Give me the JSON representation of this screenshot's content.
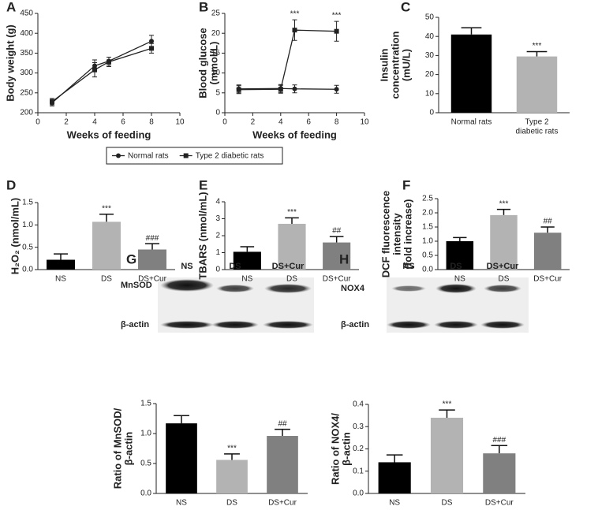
{
  "chart_data": [
    {
      "type": "line",
      "panel": "A",
      "ylabel": [
        "Body weight (g)"
      ],
      "xlabel": "Weeks of feeding",
      "xlim": [
        0,
        10
      ],
      "xticks": [
        0,
        2,
        4,
        6,
        8,
        10
      ],
      "ylim": [
        200,
        450
      ],
      "yticks": [
        200,
        250,
        300,
        350,
        400,
        450
      ],
      "x": [
        1,
        4,
        5,
        8
      ],
      "legend": true,
      "series": [
        {
          "name": "Normal rats",
          "marker": "circle",
          "color": "#222222",
          "values": [
            225,
            318,
            330,
            380
          ],
          "errors": [
            8,
            15,
            10,
            15
          ]
        },
        {
          "name": "Type 2 diabetic rats",
          "marker": "square",
          "color": "#222222",
          "values": [
            228,
            308,
            328,
            362
          ],
          "errors": [
            8,
            18,
            12,
            12
          ]
        }
      ]
    },
    {
      "type": "line",
      "panel": "B",
      "ylabel": [
        "Blood glucose",
        "(mmol/L)"
      ],
      "xlabel": "Weeks of feeding",
      "xlim": [
        0,
        10
      ],
      "xticks": [
        0,
        2,
        4,
        6,
        8,
        10
      ],
      "ylim": [
        0,
        25
      ],
      "yticks": [
        0,
        5,
        10,
        15,
        20,
        25
      ],
      "x": [
        1,
        4,
        5,
        8
      ],
      "series": [
        {
          "name": "Normal rats",
          "marker": "circle",
          "color": "#222222",
          "values": [
            6,
            6.1,
            6,
            5.9
          ],
          "errors": [
            1,
            1,
            1,
            1
          ]
        },
        {
          "name": "Type 2 diabetic rats",
          "marker": "square",
          "color": "#222222",
          "values": [
            5.8,
            5.9,
            20.8,
            20.5
          ],
          "errors": [
            1,
            1,
            2.6,
            2.5
          ],
          "significance": [
            null,
            null,
            "***",
            "***"
          ]
        }
      ]
    },
    {
      "type": "bar",
      "panel": "C",
      "ylabel": [
        "Insulin",
        "concentration",
        "(mU/L)"
      ],
      "categories": [
        [
          "Normal rats"
        ],
        [
          "Type 2",
          "diabetic rats"
        ]
      ],
      "values": [
        41,
        29.5
      ],
      "errors": [
        3.5,
        2.5
      ],
      "colors": [
        "#000000",
        "#b3b3b3"
      ],
      "significance": [
        null,
        "***"
      ],
      "ylim": [
        0,
        50
      ],
      "yticks": [
        0,
        10,
        20,
        30,
        40,
        50
      ]
    },
    {
      "type": "bar",
      "panel": "D",
      "ylabel": [
        "H₂O₂ (nmol/mL)"
      ],
      "categories": [
        "NS",
        "DS",
        "DS+Cur"
      ],
      "values": [
        0.22,
        1.07,
        0.45
      ],
      "errors": [
        0.13,
        0.17,
        0.13
      ],
      "colors": [
        "#000000",
        "#b3b3b3",
        "#808080"
      ],
      "significance": [
        null,
        "***",
        "###"
      ],
      "ylim": [
        0,
        1.5
      ],
      "yticks": [
        {
          "value": 0,
          "label": "0.0"
        },
        0.5,
        {
          "value": 1,
          "label": "1.0"
        },
        1.5
      ]
    },
    {
      "type": "bar",
      "panel": "E",
      "ylabel": [
        "TBARS (nmol/mL)"
      ],
      "categories": [
        "NS",
        "DS",
        "DS+Cur"
      ],
      "values": [
        1.05,
        2.7,
        1.6
      ],
      "errors": [
        0.3,
        0.35,
        0.35
      ],
      "colors": [
        "#000000",
        "#b3b3b3",
        "#808080"
      ],
      "significance": [
        null,
        "***",
        "##"
      ],
      "ylim": [
        0,
        4
      ],
      "yticks": [
        0,
        1,
        2,
        3,
        4
      ]
    },
    {
      "type": "bar",
      "panel": "F",
      "ylabel": [
        "DCF fluorescence",
        "intensity",
        "(fold increase)"
      ],
      "categories": [
        "NS",
        "DS",
        "DS+Cur"
      ],
      "values": [
        1.0,
        1.92,
        1.3
      ],
      "errors": [
        0.13,
        0.2,
        0.2
      ],
      "colors": [
        "#000000",
        "#b3b3b3",
        "#808080"
      ],
      "significance": [
        null,
        "***",
        "##"
      ],
      "ylim": [
        0,
        2.5
      ],
      "yticks": [
        {
          "value": 0,
          "label": "0.0"
        },
        0.5,
        {
          "value": 1,
          "label": "1.0"
        },
        1.5,
        {
          "value": 2,
          "label": "2.0"
        },
        2.5
      ]
    },
    {
      "type": "bar",
      "panel": "G",
      "blot": {
        "lanes": [
          "NS",
          "DS",
          "DS+Cur"
        ],
        "rows": [
          "MnSOD",
          "β-actin"
        ]
      },
      "ylabel": [
        "Ratio of MnSOD/",
        "β-actin"
      ],
      "categories": [
        "NS",
        "DS",
        "DS+Cur"
      ],
      "values": [
        1.17,
        0.56,
        0.96
      ],
      "errors": [
        0.13,
        0.1,
        0.11
      ],
      "colors": [
        "#000000",
        "#b3b3b3",
        "#808080"
      ],
      "significance": [
        null,
        "***",
        "##"
      ],
      "ylim": [
        0,
        1.5
      ],
      "yticks": [
        {
          "value": 0,
          "label": "0.0"
        },
        0.5,
        {
          "value": 1,
          "label": "1.0"
        },
        1.5
      ]
    },
    {
      "type": "bar",
      "panel": "H",
      "blot": {
        "lanes": [
          "NS",
          "DS",
          "DS+Cur"
        ],
        "rows": [
          "NOX4",
          "β-actin"
        ]
      },
      "ylabel": [
        "Ratio of NOX4/",
        "β-actin"
      ],
      "categories": [
        "NS",
        "DS",
        "DS+Cur"
      ],
      "values": [
        0.14,
        0.34,
        0.18
      ],
      "errors": [
        0.033,
        0.035,
        0.035
      ],
      "colors": [
        "#000000",
        "#b3b3b3",
        "#808080"
      ],
      "significance": [
        null,
        "***",
        "###"
      ],
      "ylim": [
        0,
        0.4
      ],
      "yticks": [
        {
          "value": 0,
          "label": "0.0"
        },
        0.1,
        0.2,
        0.3,
        0.4
      ]
    }
  ]
}
